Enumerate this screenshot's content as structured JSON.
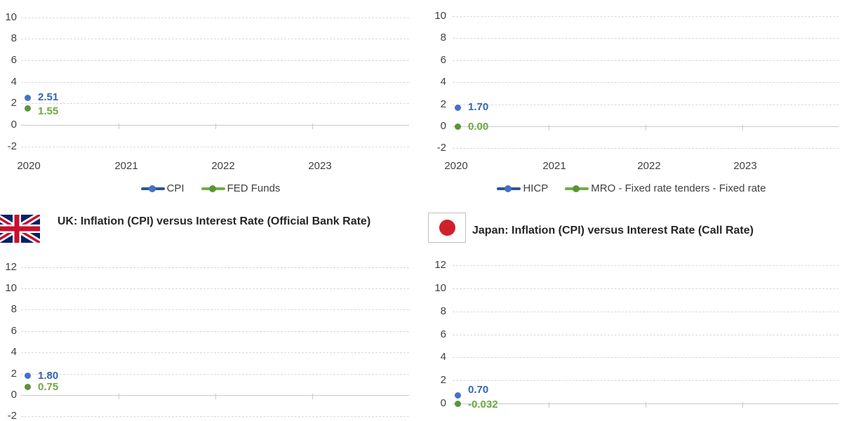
{
  "colors": {
    "series_blue_dot": "#4472C4",
    "series_blue_line": "#2F5597",
    "series_green_dot": "#5B9437",
    "series_green_line": "#70AD47",
    "label_blue": "#3465B0",
    "label_green": "#6DA83F",
    "gridline": "#D9D9D9",
    "axis_line": "#C9C9C9",
    "tick_text": "#404040",
    "title_text": "#262626",
    "uk_flag_blue": "#012169",
    "uk_flag_red": "#C8102E",
    "japan_flag_red": "#CE212B"
  },
  "chart_data": [
    {
      "id": "top-left",
      "type": "scatter",
      "y_tick_labels": [
        "10",
        "8",
        "6",
        "4",
        "2",
        "0",
        "-2"
      ],
      "x_tick_labels": [
        "2020",
        "2021",
        "2022",
        "2023"
      ],
      "series": [
        {
          "name": "CPI",
          "color": "blue",
          "x": "2020",
          "y": 2.51,
          "data_label": "2.51"
        },
        {
          "name": "FED Funds",
          "color": "green",
          "x": "2020",
          "y": 1.55,
          "data_label": "1.55"
        }
      ],
      "legend": [
        "CPI",
        "FED Funds"
      ],
      "legend_position": "bottom",
      "grid": "dashed-horizontal",
      "ylim_visible": [
        -2,
        10
      ]
    },
    {
      "id": "top-right",
      "type": "scatter",
      "y_tick_labels": [
        "10",
        "8",
        "6",
        "4",
        "2",
        "0",
        "-2"
      ],
      "x_tick_labels": [
        "2020",
        "2021",
        "2022",
        "2023"
      ],
      "series": [
        {
          "name": "HICP",
          "color": "blue",
          "x": "2020",
          "y": 1.7,
          "data_label": "1.70"
        },
        {
          "name": "MRO - Fixed rate tenders - Fixed rate",
          "color": "green",
          "x": "2020",
          "y": 0.0,
          "data_label": "0.00"
        }
      ],
      "legend": [
        "HICP",
        "MRO - Fixed rate tenders - Fixed rate"
      ],
      "legend_position": "bottom",
      "grid": "dashed-horizontal",
      "ylim_visible": [
        -2,
        10
      ]
    },
    {
      "id": "bottom-left",
      "type": "scatter",
      "title": "UK: Inflation (CPI) versus Interest Rate (Official Bank Rate)",
      "flag_icon": "uk-flag",
      "y_tick_labels": [
        "12",
        "10",
        "8",
        "6",
        "4",
        "2",
        "0",
        "-2"
      ],
      "x_tick_labels": [],
      "series": [
        {
          "color": "blue",
          "x": "2020",
          "y": 1.8,
          "data_label": "1.80"
        },
        {
          "color": "green",
          "x": "2020",
          "y": 0.75,
          "data_label": "0.75"
        }
      ],
      "grid": "dashed-horizontal",
      "ylim_visible": [
        -2,
        12
      ]
    },
    {
      "id": "bottom-right",
      "type": "scatter",
      "title": "Japan: Inflation (CPI) versus Interest Rate (Call Rate)",
      "flag_icon": "japan-flag",
      "y_tick_labels": [
        "12",
        "10",
        "8",
        "6",
        "4",
        "2",
        "0"
      ],
      "x_tick_labels": [],
      "series": [
        {
          "color": "blue",
          "x": "2020",
          "y": 0.7,
          "data_label": "0.70"
        },
        {
          "color": "green",
          "x": "2020",
          "y": -0.032,
          "data_label": "-0.032"
        }
      ],
      "grid": "dashed-horizontal",
      "ylim_visible": [
        0,
        12
      ]
    }
  ]
}
